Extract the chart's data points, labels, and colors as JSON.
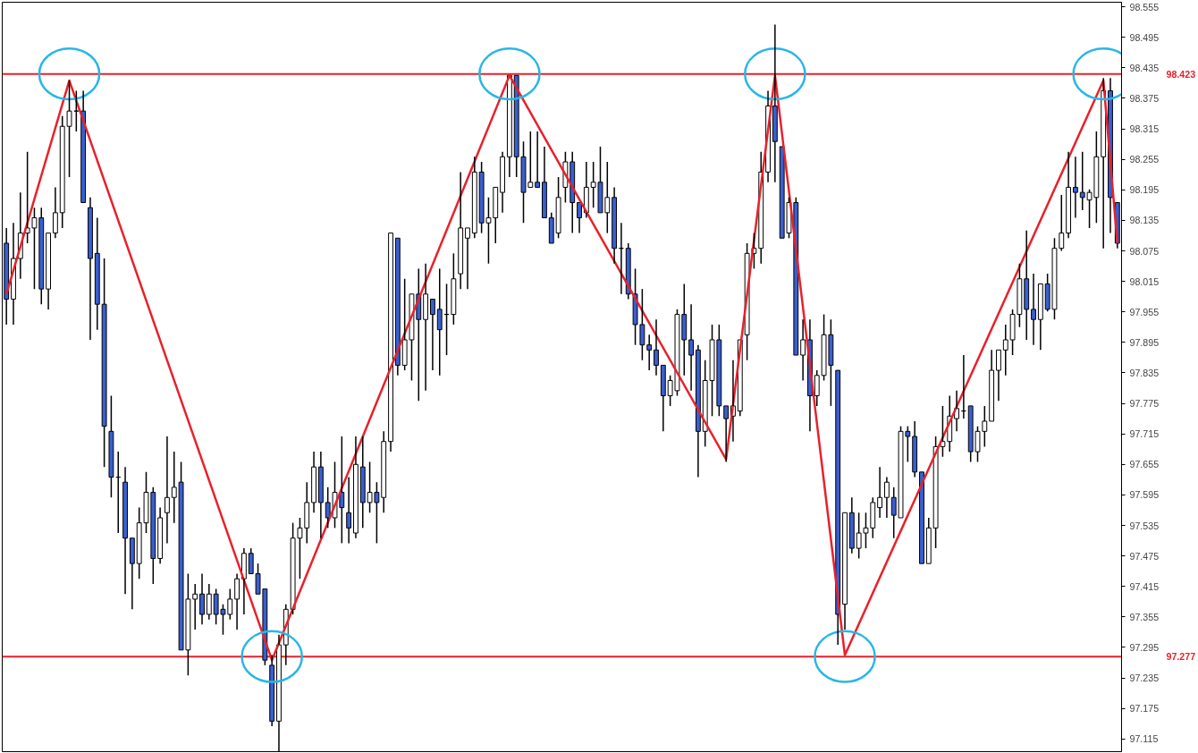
{
  "chart_data": {
    "type": "candlestick",
    "categories": [
      null,
      null,
      null,
      null,
      null,
      null,
      null,
      null,
      null,
      null,
      null,
      null,
      null,
      null,
      null,
      null,
      null,
      null,
      null,
      null,
      null,
      null,
      null,
      null,
      null,
      null,
      null,
      null,
      null,
      null,
      null,
      null,
      null,
      null,
      null,
      null,
      null,
      null,
      null,
      null,
      null,
      null,
      null,
      null,
      null,
      null,
      null,
      null,
      null,
      null,
      null,
      null,
      null,
      null,
      null,
      null,
      null,
      null,
      null,
      null,
      null,
      null,
      null,
      null,
      null,
      null,
      null,
      null,
      null,
      null,
      null,
      null,
      null,
      null,
      null,
      null,
      null,
      null,
      null,
      null,
      null,
      null,
      null,
      null,
      null,
      null,
      null,
      null,
      null,
      null,
      null,
      null,
      null,
      null,
      null,
      null,
      null,
      null,
      null,
      null,
      null,
      null,
      null,
      null,
      null,
      null,
      null,
      null,
      null,
      null,
      null,
      null,
      null,
      null,
      null,
      null,
      null,
      null,
      null,
      null,
      null,
      null,
      null,
      null,
      null,
      null,
      null,
      null,
      null,
      null,
      null,
      null,
      null,
      null,
      null,
      null,
      null,
      null,
      null,
      null,
      null,
      null,
      null,
      null,
      null,
      null,
      null,
      null,
      null,
      null,
      null,
      null,
      null,
      null,
      null,
      null,
      null,
      null,
      null,
      null
    ],
    "ohlc": [
      [
        98.09,
        98.12,
        97.93,
        97.98
      ],
      [
        97.98,
        98.13,
        97.93,
        98.06
      ],
      [
        98.06,
        98.19,
        98.02,
        98.11
      ],
      [
        98.11,
        98.27,
        98.09,
        98.12
      ],
      [
        98.12,
        98.16,
        98.0,
        98.14
      ],
      [
        98.14,
        98.16,
        97.97,
        98.0
      ],
      [
        98.0,
        98.11,
        97.96,
        98.11
      ],
      [
        98.11,
        98.2,
        98.1,
        98.15
      ],
      [
        98.15,
        98.34,
        98.12,
        98.32
      ],
      [
        98.32,
        98.41,
        98.22,
        98.35
      ],
      [
        98.35,
        98.39,
        98.31,
        98.35
      ],
      [
        98.35,
        98.39,
        98.17,
        98.17
      ],
      [
        98.16,
        98.18,
        97.9,
        98.06
      ],
      [
        98.07,
        98.14,
        97.92,
        97.97
      ],
      [
        97.97,
        98.06,
        97.65,
        97.73
      ],
      [
        97.72,
        97.79,
        97.59,
        97.63
      ],
      [
        97.63,
        97.68,
        97.52,
        97.63
      ],
      [
        97.62,
        97.65,
        97.4,
        97.51
      ],
      [
        97.51,
        97.51,
        97.37,
        97.46
      ],
      [
        97.46,
        97.57,
        97.43,
        97.54
      ],
      [
        97.54,
        97.64,
        97.52,
        97.6
      ],
      [
        97.6,
        97.61,
        97.42,
        97.47
      ],
      [
        97.47,
        97.57,
        97.46,
        97.55
      ],
      [
        97.56,
        97.71,
        97.5,
        97.59
      ],
      [
        97.59,
        97.68,
        97.54,
        97.61
      ],
      [
        97.62,
        97.66,
        97.29,
        97.29
      ],
      [
        97.29,
        97.44,
        97.24,
        97.39
      ],
      [
        97.39,
        97.42,
        97.33,
        97.4
      ],
      [
        97.4,
        97.44,
        97.34,
        97.36
      ],
      [
        97.36,
        97.42,
        97.35,
        97.4
      ],
      [
        97.4,
        97.41,
        97.34,
        97.36
      ],
      [
        97.37,
        97.38,
        97.32,
        97.36
      ],
      [
        97.36,
        97.41,
        97.35,
        97.39
      ],
      [
        97.39,
        97.44,
        97.33,
        97.43
      ],
      [
        97.43,
        97.49,
        97.36,
        97.48
      ],
      [
        97.48,
        97.49,
        97.44,
        97.44
      ],
      [
        97.44,
        97.46,
        97.4,
        97.4
      ],
      [
        97.41,
        97.41,
        97.26,
        97.27
      ],
      [
        97.26,
        97.28,
        97.14,
        97.15
      ],
      [
        97.15,
        97.32,
        97.09,
        97.3
      ],
      [
        97.3,
        97.38,
        97.26,
        97.37
      ],
      [
        97.37,
        97.54,
        97.36,
        97.51
      ],
      [
        97.51,
        97.55,
        97.43,
        97.53
      ],
      [
        97.53,
        97.62,
        97.5,
        97.58
      ],
      [
        97.58,
        97.68,
        97.56,
        97.65
      ],
      [
        97.65,
        97.68,
        97.51,
        97.58
      ],
      [
        97.58,
        97.61,
        97.53,
        97.55
      ],
      [
        97.55,
        97.66,
        97.53,
        97.6
      ],
      [
        97.6,
        97.71,
        97.5,
        97.57
      ],
      [
        97.56,
        97.63,
        97.5,
        97.53
      ],
      [
        97.52,
        97.71,
        97.51,
        97.655
      ],
      [
        97.65,
        97.71,
        97.53,
        97.58
      ],
      [
        97.58,
        97.66,
        97.56,
        97.6
      ],
      [
        97.6,
        97.62,
        97.5,
        97.58
      ],
      [
        97.59,
        97.72,
        97.56,
        97.7
      ],
      [
        97.7,
        98.11,
        97.68,
        98.11
      ],
      [
        98.1,
        98.1,
        97.83,
        97.85
      ],
      [
        97.85,
        98.02,
        97.84,
        97.9
      ],
      [
        97.9,
        97.99,
        97.82,
        97.99
      ],
      [
        97.99,
        98.04,
        97.78,
        97.94
      ],
      [
        97.94,
        98.05,
        97.8,
        97.99
      ],
      [
        97.98,
        97.98,
        97.84,
        97.95
      ],
      [
        97.96,
        98.04,
        97.83,
        97.92
      ],
      [
        97.95,
        98.01,
        97.87,
        97.95
      ],
      [
        97.95,
        98.07,
        97.93,
        98.02
      ],
      [
        98.03,
        98.23,
        98.0,
        98.12
      ],
      [
        98.1,
        98.12,
        98.0,
        98.12
      ],
      [
        98.11,
        98.26,
        98.1,
        98.23
      ],
      [
        98.23,
        98.25,
        98.11,
        98.13
      ],
      [
        98.13,
        98.18,
        98.05,
        98.14
      ],
      [
        98.14,
        98.2,
        98.09,
        98.2
      ],
      [
        98.19,
        98.27,
        98.15,
        98.26
      ],
      [
        98.26,
        98.42,
        98.22,
        98.42
      ],
      [
        98.42,
        98.42,
        98.22,
        98.26
      ],
      [
        98.26,
        98.29,
        98.13,
        98.19
      ],
      [
        98.2,
        98.31,
        98.2,
        98.21
      ],
      [
        98.21,
        98.31,
        98.2,
        98.2
      ],
      [
        98.21,
        98.28,
        98.14,
        98.14
      ],
      [
        98.14,
        98.15,
        98.09,
        98.09
      ],
      [
        98.11,
        98.22,
        98.1,
        98.18
      ],
      [
        98.2,
        98.27,
        98.17,
        98.25
      ],
      [
        98.25,
        98.27,
        98.11,
        98.17
      ],
      [
        98.17,
        98.17,
        98.11,
        98.14
      ],
      [
        98.15,
        98.25,
        98.14,
        98.2
      ],
      [
        98.2,
        98.25,
        98.16,
        98.21
      ],
      [
        98.21,
        98.28,
        98.15,
        98.15
      ],
      [
        98.15,
        98.25,
        98.11,
        98.18
      ],
      [
        98.18,
        98.2,
        98.05,
        98.08
      ],
      [
        98.08,
        98.13,
        97.99,
        98.08
      ],
      [
        98.08,
        98.09,
        97.98,
        97.99
      ],
      [
        97.99,
        98.04,
        97.89,
        97.93
      ],
      [
        97.93,
        98.0,
        97.86,
        97.89
      ],
      [
        97.89,
        97.91,
        97.84,
        97.88
      ],
      [
        97.88,
        97.94,
        97.83,
        97.85
      ],
      [
        97.85,
        97.85,
        97.72,
        97.79
      ],
      [
        97.79,
        97.83,
        97.77,
        97.82
      ],
      [
        97.8,
        97.96,
        97.79,
        97.95
      ],
      [
        97.95,
        98.01,
        97.83,
        97.9
      ],
      [
        97.9,
        97.97,
        97.8,
        97.87
      ],
      [
        97.88,
        97.89,
        97.63,
        97.72
      ],
      [
        97.72,
        97.86,
        97.69,
        97.82
      ],
      [
        97.82,
        97.93,
        97.75,
        97.9
      ],
      [
        97.9,
        97.93,
        97.75,
        97.77
      ],
      [
        97.77,
        97.77,
        97.66,
        97.745
      ],
      [
        97.75,
        97.86,
        97.7,
        97.77
      ],
      [
        97.76,
        97.9,
        97.75,
        97.9
      ],
      [
        97.91,
        98.09,
        97.86,
        98.07
      ],
      [
        98.07,
        98.11,
        98.04,
        98.08
      ],
      [
        98.08,
        98.27,
        98.05,
        98.23
      ],
      [
        98.23,
        98.39,
        98.21,
        98.36
      ],
      [
        98.36,
        98.52,
        98.21,
        98.29
      ],
      [
        98.28,
        98.28,
        98.1,
        98.1
      ],
      [
        98.11,
        98.18,
        98.1,
        98.17
      ],
      [
        98.17,
        98.18,
        97.87,
        97.87
      ],
      [
        97.87,
        97.94,
        97.82,
        97.9
      ],
      [
        97.9,
        97.94,
        97.72,
        97.79
      ],
      [
        97.79,
        97.84,
        97.77,
        97.83
      ],
      [
        97.83,
        97.95,
        97.82,
        97.91
      ],
      [
        97.91,
        97.94,
        97.77,
        97.85
      ],
      [
        97.84,
        97.84,
        97.3,
        97.36
      ],
      [
        97.38,
        97.56,
        97.33,
        97.56
      ],
      [
        97.56,
        97.59,
        97.48,
        97.49
      ],
      [
        97.49,
        97.56,
        97.47,
        97.52
      ],
      [
        97.52,
        97.56,
        97.49,
        97.53
      ],
      [
        97.53,
        97.59,
        97.51,
        97.58
      ],
      [
        97.57,
        97.65,
        97.55,
        97.59
      ],
      [
        97.59,
        97.63,
        97.55,
        97.62
      ],
      [
        97.59,
        97.61,
        97.51,
        97.555
      ],
      [
        97.55,
        97.73,
        97.55,
        97.72
      ],
      [
        97.72,
        97.73,
        97.66,
        97.71
      ],
      [
        97.71,
        97.74,
        97.63,
        97.64
      ],
      [
        97.64,
        97.64,
        97.46,
        97.46
      ],
      [
        97.46,
        97.55,
        97.46,
        97.53
      ],
      [
        97.53,
        97.71,
        97.49,
        97.69
      ],
      [
        97.69,
        97.77,
        97.67,
        97.7
      ],
      [
        97.7,
        97.79,
        97.68,
        97.75
      ],
      [
        97.745,
        97.8,
        97.72,
        97.765
      ],
      [
        97.76,
        97.87,
        97.745,
        97.76
      ],
      [
        97.77,
        97.77,
        97.66,
        97.68
      ],
      [
        97.68,
        97.73,
        97.66,
        97.72
      ],
      [
        97.72,
        97.77,
        97.69,
        97.74
      ],
      [
        97.74,
        97.88,
        97.74,
        97.84
      ],
      [
        97.84,
        97.88,
        97.78,
        97.88
      ],
      [
        97.88,
        97.93,
        97.83,
        97.9
      ],
      [
        97.9,
        97.96,
        97.87,
        97.95
      ],
      [
        97.95,
        98.05,
        97.925,
        98.02
      ],
      [
        98.02,
        98.115,
        97.9,
        97.96
      ],
      [
        97.96,
        98.03,
        97.89,
        97.94
      ],
      [
        97.94,
        98.01,
        97.88,
        98.01
      ],
      [
        98.01,
        98.03,
        97.956,
        97.96
      ],
      [
        97.96,
        98.1,
        97.94,
        98.08
      ],
      [
        98.08,
        98.185,
        98.075,
        98.11
      ],
      [
        98.11,
        98.27,
        98.1,
        98.2
      ],
      [
        98.2,
        98.26,
        98.14,
        98.19
      ],
      [
        98.19,
        98.27,
        98.155,
        98.18
      ],
      [
        98.175,
        98.196,
        98.12,
        98.19
      ],
      [
        98.18,
        98.31,
        98.13,
        98.26
      ],
      [
        98.26,
        98.415,
        98.08,
        98.39
      ],
      [
        98.39,
        98.415,
        98.11,
        98.18
      ],
      [
        98.17,
        98.17,
        98.08,
        98.09
      ]
    ],
    "series": [
      {
        "type": "line",
        "color": "#e8212b",
        "values": [
          97.99,
          null,
          null,
          null,
          null,
          null,
          null,
          null,
          null,
          98.41,
          null,
          null,
          null,
          null,
          null,
          null,
          null,
          null,
          null,
          null,
          null,
          null,
          null,
          null,
          null,
          null,
          null,
          null,
          null,
          null,
          null,
          null,
          null,
          null,
          null,
          null,
          null,
          null,
          97.27,
          null,
          null,
          null,
          null,
          null,
          null,
          null,
          null,
          null,
          null,
          null,
          null,
          null,
          null,
          null,
          null,
          null,
          null,
          null,
          null,
          null,
          null,
          null,
          null,
          null,
          null,
          null,
          null,
          null,
          null,
          null,
          null,
          null,
          98.42,
          null,
          null,
          null,
          null,
          null,
          null,
          null,
          null,
          null,
          null,
          null,
          null,
          null,
          null,
          null,
          null,
          null,
          null,
          null,
          null,
          null,
          null,
          null,
          null,
          null,
          null,
          null,
          null,
          null,
          null,
          97.665,
          null,
          null,
          null,
          null,
          null,
          null,
          98.42,
          null,
          null,
          null,
          null,
          null,
          null,
          null,
          null,
          null,
          97.28,
          null,
          null,
          null,
          null,
          null,
          null,
          null,
          null,
          null,
          null,
          null,
          null,
          null,
          null,
          null,
          null,
          null,
          null,
          null,
          null,
          null,
          null,
          null,
          null,
          null,
          null,
          null,
          null,
          null,
          null,
          null,
          null,
          null,
          null,
          null,
          null,
          98.41,
          null,
          98.09
        ]
      }
    ],
    "ref_lines": [
      {
        "axis": "y",
        "value": 98.423,
        "label": "98.423",
        "color": "#e8212b"
      },
      {
        "axis": "y",
        "value": 97.277,
        "label": "97.277",
        "color": "#e8212b"
      }
    ],
    "ylim": [
      97.09,
      98.564
    ],
    "yticks": [
      97.115,
      97.175,
      97.235,
      97.295,
      97.355,
      97.415,
      97.475,
      97.535,
      97.595,
      97.655,
      97.715,
      97.775,
      97.835,
      97.895,
      97.955,
      98.015,
      98.075,
      98.135,
      98.195,
      98.255,
      98.315,
      98.375,
      98.435,
      98.495,
      98.555
    ],
    "tick_labels": "y"
  }
}
